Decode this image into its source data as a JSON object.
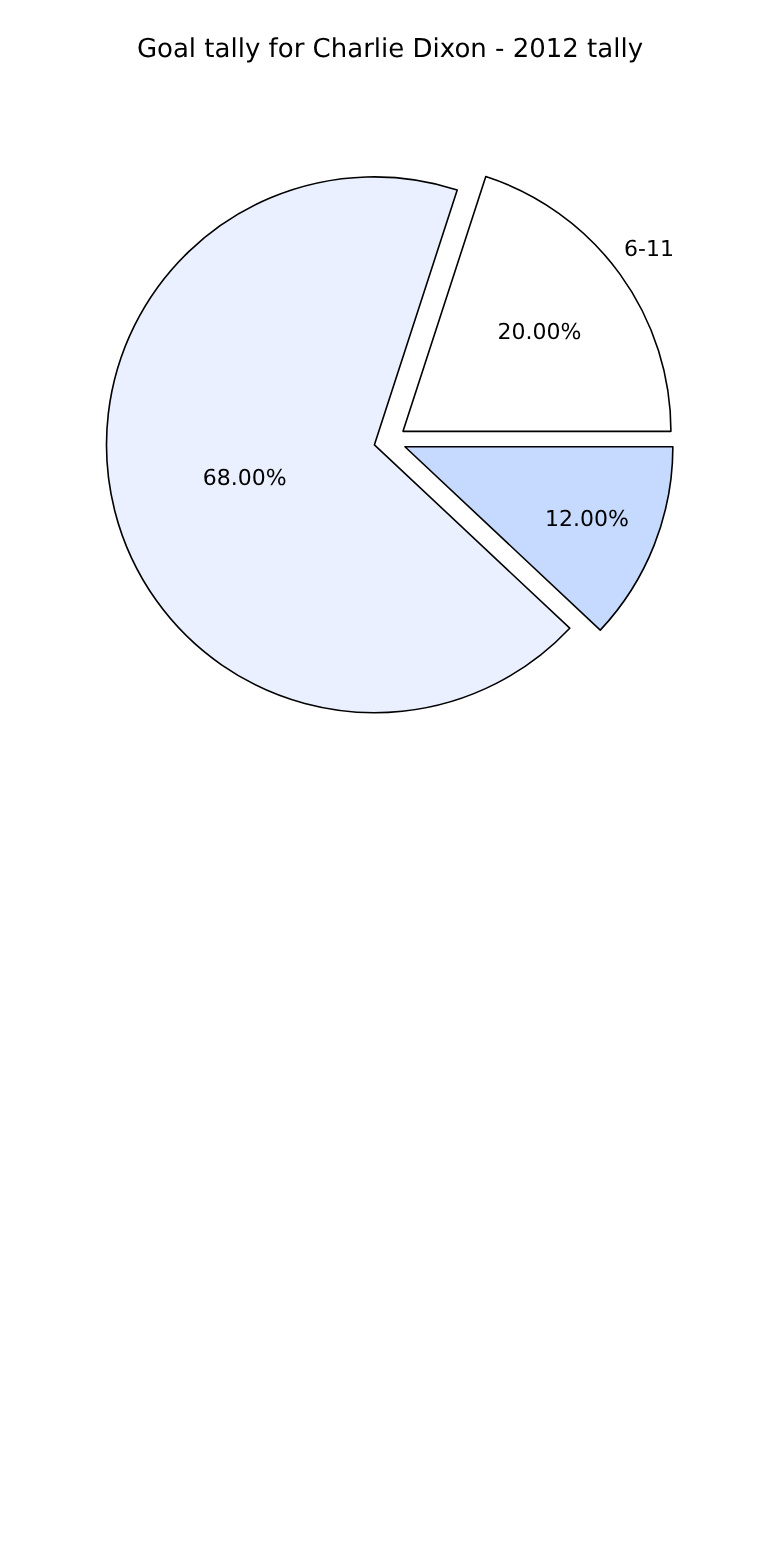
{
  "chart_data": {
    "type": "pie",
    "title": "Goal tally for Charlie Dixon - 2012 tally",
    "categories": [
      "6-11",
      null,
      null
    ],
    "values": [
      20,
      12,
      68
    ],
    "colors": [
      "#ffffff",
      "#c6d9ff",
      "#eaf0ff"
    ],
    "value_labels": [
      "20.00%",
      "12.00%",
      "68.00%"
    ]
  }
}
